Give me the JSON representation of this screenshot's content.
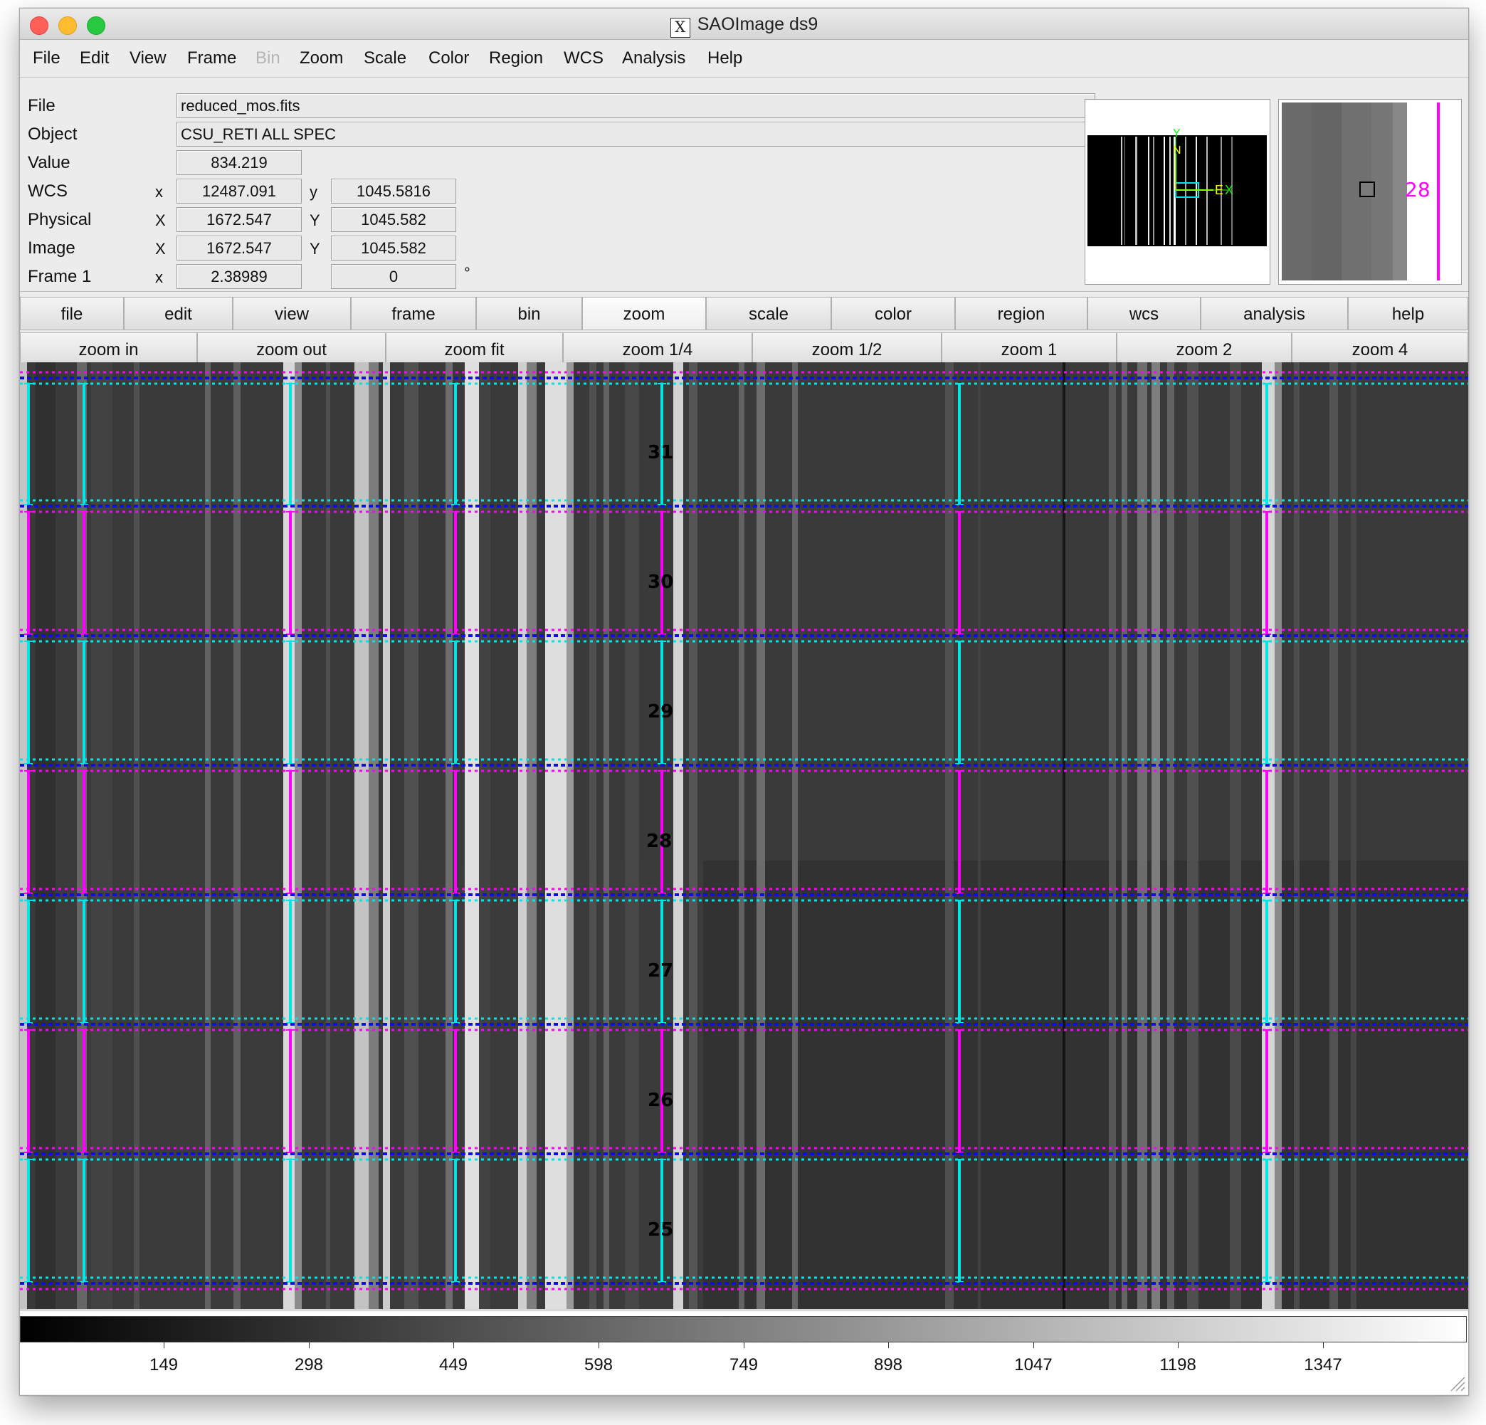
{
  "window": {
    "title": "SAOImage ds9"
  },
  "menu": [
    "File",
    "Edit",
    "View",
    "Frame",
    "Bin",
    "Zoom",
    "Scale",
    "Color",
    "Region",
    "WCS",
    "Analysis",
    "Help"
  ],
  "menu_disabled": [
    "Bin"
  ],
  "info": {
    "file_label": "File",
    "file_value": "reduced_mos.fits",
    "object_label": "Object",
    "object_value": "CSU_RETI ALL SPEC",
    "value_label": "Value",
    "value_value": "834.219",
    "wcs_label": "WCS",
    "wcs_x_axis": "x",
    "wcs_x": "12487.091",
    "wcs_y_axis": "y",
    "wcs_y": "1045.5816",
    "physical_label": "Physical",
    "physical_x_axis": "X",
    "physical_x": "1672.547",
    "physical_y_axis": "Y",
    "physical_y": "1045.582",
    "image_label": "Image",
    "image_x_axis": "X",
    "image_x": "1672.547",
    "image_y_axis": "Y",
    "image_y": "1045.582",
    "frame_label": "Frame 1",
    "frame_x_axis": "x",
    "frame_zoom": "2.38989",
    "frame_angle": "0",
    "frame_angle_unit": "°"
  },
  "panner": {
    "north_label": "Y",
    "n_label": "N",
    "east_label": "E",
    "x_label": "X"
  },
  "magnifier": {
    "slit_label": "28",
    "slit_color": "#ff00ff"
  },
  "button_bar": [
    "file",
    "edit",
    "view",
    "frame",
    "bin",
    "zoom",
    "scale",
    "color",
    "region",
    "wcs",
    "analysis",
    "help"
  ],
  "button_bar_active": "zoom",
  "zoom_bar": [
    "zoom in",
    "zoom out",
    "zoom fit",
    "zoom 1/4",
    "zoom 1/2",
    "zoom 1",
    "zoom 2",
    "zoom 4"
  ],
  "image": {
    "slits": [
      {
        "label": "31",
        "color": "#00e5e5"
      },
      {
        "label": "30",
        "color": "#ff00ff"
      },
      {
        "label": "29",
        "color": "#00e5e5"
      },
      {
        "label": "28",
        "color": "#ff00ff"
      },
      {
        "label": "27",
        "color": "#00e5e5"
      },
      {
        "label": "26",
        "color": "#ff00ff"
      },
      {
        "label": "25",
        "color": "#00e5e5"
      }
    ],
    "region_colors": {
      "cyan": "#00e5e5",
      "magenta": "#ff00ff",
      "blue": "#1010d8"
    }
  },
  "colorbar": {
    "ticks": [
      "149",
      "298",
      "449",
      "598",
      "749",
      "898",
      "1047",
      "1198",
      "1347"
    ]
  }
}
